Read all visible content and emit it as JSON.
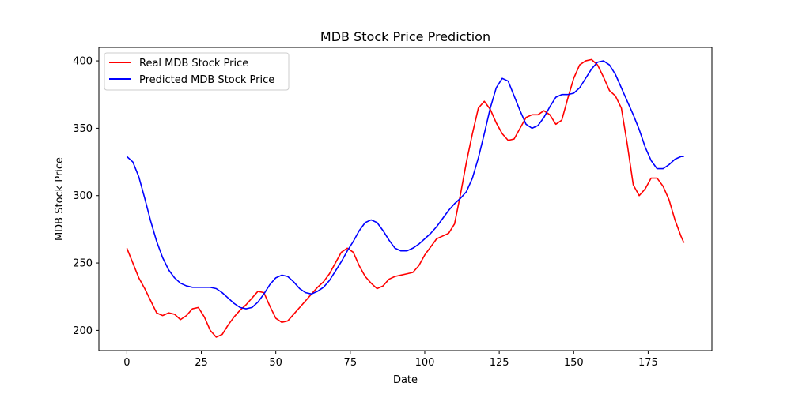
{
  "chart_data": {
    "type": "line",
    "title": "MDB Stock Price Prediction",
    "xlabel": "Date",
    "ylabel": "MDB Stock Price",
    "xlim": [
      -9.4,
      196.4
    ],
    "ylim": [
      185,
      410
    ],
    "xticks": [
      0,
      25,
      50,
      75,
      100,
      125,
      150,
      175
    ],
    "yticks": [
      200,
      250,
      300,
      350,
      400
    ],
    "grid": false,
    "legend_position": "upper-left",
    "series": [
      {
        "name": "Real MDB Stock Price",
        "color": "#ff0000",
        "x": [
          0,
          2,
          4,
          6,
          8,
          10,
          12,
          14,
          16,
          18,
          20,
          22,
          24,
          26,
          28,
          30,
          32,
          34,
          36,
          38,
          40,
          42,
          44,
          46,
          48,
          50,
          52,
          54,
          56,
          58,
          60,
          62,
          64,
          66,
          68,
          70,
          72,
          74,
          76,
          78,
          80,
          82,
          84,
          86,
          88,
          90,
          92,
          94,
          96,
          98,
          100,
          102,
          104,
          106,
          108,
          110,
          112,
          114,
          116,
          118,
          120,
          122,
          124,
          126,
          128,
          130,
          132,
          134,
          136,
          138,
          140,
          142,
          144,
          146,
          148,
          150,
          152,
          154,
          156,
          158,
          160,
          162,
          164,
          166,
          168,
          170,
          172,
          174,
          176,
          178,
          180,
          182,
          184,
          186,
          187
        ],
        "y": [
          261,
          250,
          239,
          231,
          222,
          213,
          211,
          213,
          212,
          208,
          211,
          216,
          217,
          210,
          200,
          195,
          197,
          204,
          210,
          215,
          219,
          224,
          229,
          228,
          218,
          209,
          206,
          207,
          212,
          217,
          222,
          227,
          232,
          236,
          242,
          250,
          258,
          261,
          258,
          248,
          240,
          235,
          231,
          233,
          238,
          240,
          241,
          242,
          243,
          248,
          256,
          262,
          268,
          270,
          272,
          279,
          301,
          325,
          346,
          365,
          370,
          364,
          354,
          346,
          341,
          342,
          350,
          358,
          360,
          360,
          363,
          360,
          353,
          356,
          372,
          387,
          397,
          400,
          401,
          397,
          388,
          378,
          374,
          365,
          338,
          308,
          300,
          305,
          313,
          313,
          307,
          297,
          282,
          270,
          265
        ]
      },
      {
        "name": "Predicted MDB Stock Price",
        "color": "#0000ff",
        "x": [
          0,
          2,
          4,
          6,
          8,
          10,
          12,
          14,
          16,
          18,
          20,
          22,
          24,
          26,
          28,
          30,
          32,
          34,
          36,
          38,
          40,
          42,
          44,
          46,
          48,
          50,
          52,
          54,
          56,
          58,
          60,
          62,
          64,
          66,
          68,
          70,
          72,
          74,
          76,
          78,
          80,
          82,
          84,
          86,
          88,
          90,
          92,
          94,
          96,
          98,
          100,
          102,
          104,
          106,
          108,
          110,
          112,
          114,
          116,
          118,
          120,
          122,
          124,
          126,
          128,
          130,
          132,
          134,
          136,
          138,
          140,
          142,
          144,
          146,
          148,
          150,
          152,
          154,
          156,
          158,
          160,
          162,
          164,
          166,
          168,
          170,
          172,
          174,
          176,
          178,
          180,
          182,
          184,
          186,
          187
        ],
        "y": [
          329,
          325,
          314,
          298,
          281,
          266,
          254,
          245,
          239,
          235,
          233,
          232,
          232,
          232,
          232,
          231,
          228,
          224,
          220,
          217,
          216,
          217,
          221,
          227,
          234,
          239,
          241,
          240,
          236,
          231,
          228,
          227,
          229,
          232,
          237,
          244,
          251,
          259,
          266,
          274,
          280,
          282,
          280,
          274,
          267,
          261,
          259,
          259,
          261,
          264,
          268,
          272,
          277,
          283,
          289,
          294,
          298,
          303,
          313,
          328,
          346,
          365,
          380,
          387,
          385,
          374,
          363,
          353,
          350,
          352,
          358,
          366,
          373,
          375,
          375,
          376,
          380,
          387,
          394,
          399,
          400,
          397,
          390,
          380,
          370,
          360,
          349,
          336,
          326,
          320,
          320,
          323,
          327,
          329,
          329
        ]
      }
    ]
  }
}
